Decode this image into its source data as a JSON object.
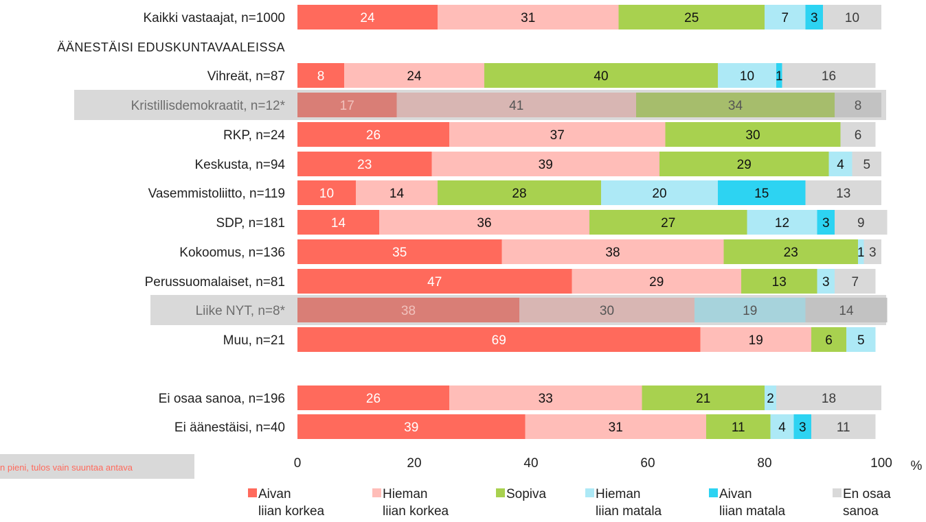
{
  "chart_data": {
    "type": "bar",
    "orientation": "horizontal",
    "stacked": true,
    "section_label": "ÄÄNESTÄISI EDUSKUNTAVAALEISSA",
    "series": [
      {
        "name": "Aivan liian korkea",
        "lines": [
          "Aivan",
          "liian korkea"
        ],
        "color": "#ff6a5c"
      },
      {
        "name": "Hieman liian korkea",
        "lines": [
          "Hieman",
          "liian korkea"
        ],
        "color": "#ffbdb8"
      },
      {
        "name": "Sopiva",
        "lines": [
          "Sopiva"
        ],
        "color": "#a8d14f"
      },
      {
        "name": "Hieman liian matala",
        "lines": [
          "Hieman",
          "liian matala"
        ],
        "color": "#ade9f6"
      },
      {
        "name": "Aivan liian matala",
        "lines": [
          "Aivan",
          "liian matala"
        ],
        "color": "#2dd3f2"
      },
      {
        "name": "En osaa sanoa",
        "lines": [
          "En osaa",
          "sanoa"
        ],
        "color": "#d9d9d9"
      }
    ],
    "dimmed_series_colors": [
      "#d97e76",
      "#d8b6b3",
      "#a6bd6c",
      "#a7d3dc",
      "#a7d3dc",
      "#c2c2c2"
    ],
    "rows": [
      {
        "label": "Kaikki vastaajat, n=1000",
        "values": [
          24,
          31,
          25,
          7,
          3,
          10
        ],
        "dim": false
      },
      {
        "label": "Vihreät, n=87",
        "values": [
          8,
          24,
          40,
          10,
          1,
          16
        ],
        "dim": false
      },
      {
        "label": "Kristillisdemokraatit, n=12*",
        "values": [
          17,
          41,
          34,
          0,
          0,
          8
        ],
        "dim": true
      },
      {
        "label": "RKP, n=24",
        "values": [
          26,
          37,
          30,
          0,
          0,
          6
        ],
        "dim": false
      },
      {
        "label": "Keskusta, n=94",
        "values": [
          23,
          39,
          29,
          4,
          0,
          5
        ],
        "dim": false
      },
      {
        "label": "Vasemmistoliitto, n=119",
        "values": [
          10,
          14,
          28,
          20,
          15,
          13
        ],
        "dim": false
      },
      {
        "label": "SDP, n=181",
        "values": [
          14,
          36,
          27,
          12,
          3,
          9
        ],
        "dim": false
      },
      {
        "label": "Kokoomus, n=136",
        "values": [
          35,
          38,
          23,
          1,
          0,
          3
        ],
        "dim": false
      },
      {
        "label": "Perussuomalaiset, n=81",
        "values": [
          47,
          29,
          13,
          3,
          0,
          7
        ],
        "dim": false
      },
      {
        "label": "Liike NYT, n=8*",
        "values": [
          38,
          30,
          0,
          19,
          0,
          14
        ],
        "dim": true
      },
      {
        "label": "Muu, n=21",
        "values": [
          69,
          19,
          6,
          5,
          0,
          0
        ],
        "dim": false
      },
      {
        "label": "Ei osaa sanoa, n=196",
        "values": [
          26,
          33,
          21,
          2,
          0,
          18
        ],
        "dim": false
      },
      {
        "label": "Ei äänestäisi, n=40",
        "values": [
          39,
          31,
          11,
          4,
          3,
          11
        ],
        "dim": false
      }
    ],
    "xlim": [
      0,
      100
    ],
    "xticks": [
      0,
      20,
      40,
      60,
      80,
      100
    ],
    "x_unit": "%",
    "note": "n pieni, tulos vain suuntaa antava",
    "legend_position": "bottom"
  }
}
